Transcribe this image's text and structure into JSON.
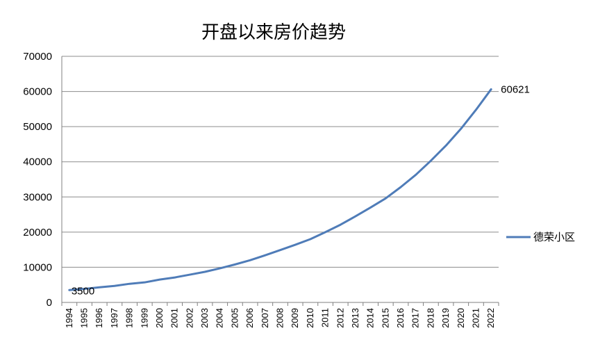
{
  "chart_data": {
    "type": "line",
    "title": "开盘以来房价趋势",
    "x": [
      "1994",
      "1995",
      "1996",
      "1997",
      "1998",
      "1999",
      "2000",
      "2001",
      "2002",
      "2003",
      "2004",
      "2005",
      "2006",
      "2007",
      "2008",
      "2009",
      "2010",
      "2011",
      "2012",
      "2013",
      "2014",
      "2015",
      "2016",
      "2017",
      "2018",
      "2019",
      "2020",
      "2021",
      "2022"
    ],
    "series": [
      {
        "name": "德荣小区",
        "color": "#4f7cb8",
        "values": [
          3500,
          3850,
          4300,
          4700,
          5300,
          5700,
          6500,
          7100,
          7900,
          8700,
          9700,
          10800,
          12000,
          13400,
          14900,
          16400,
          18000,
          20000,
          22100,
          24500,
          27000,
          29600,
          32800,
          36300,
          40300,
          44600,
          49400,
          54800,
          60621
        ]
      }
    ],
    "data_labels": [
      {
        "index": 0,
        "text": "3500"
      },
      {
        "index": 28,
        "text": "60621"
      }
    ],
    "ylim": [
      0,
      70000
    ],
    "yticks": [
      0,
      10000,
      20000,
      30000,
      40000,
      50000,
      60000,
      70000
    ],
    "grid": true,
    "legend_position": "right",
    "colors": {
      "gridline": "#8c8c8c",
      "axis": "#7f7f7f",
      "series": "#4f7cb8"
    }
  }
}
